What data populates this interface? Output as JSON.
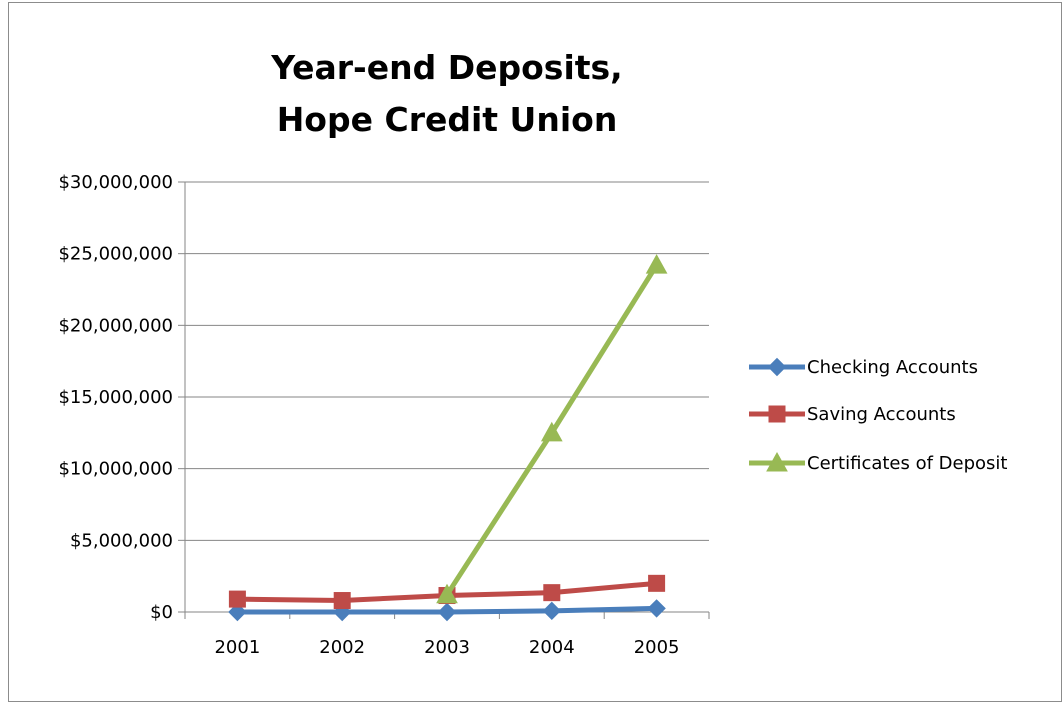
{
  "chart_data": {
    "type": "line",
    "title_lines": [
      "Year-end Deposits,",
      "Hope Credit Union"
    ],
    "categories": [
      "2001",
      "2002",
      "2003",
      "2004",
      "2005"
    ],
    "y_ticks": [
      "$0",
      "$5,000,000",
      "$10,000,000",
      "$15,000,000",
      "$20,000,000",
      "$25,000,000",
      "$30,000,000"
    ],
    "ylim": [
      0,
      30000000
    ],
    "grid": true,
    "legend_position": "right",
    "series": [
      {
        "name": "Checking Accounts",
        "color": "#4a7ebb",
        "marker": "diamond",
        "values": [
          0,
          0,
          0,
          80000,
          250000
        ]
      },
      {
        "name": "Saving Accounts",
        "color": "#be4b48",
        "marker": "square",
        "values": [
          900000,
          800000,
          1150000,
          1350000,
          2000000
        ]
      },
      {
        "name": "Certificates of Deposit",
        "color": "#98b954",
        "marker": "triangle",
        "values": [
          null,
          null,
          1200000,
          12500000,
          24200000
        ]
      }
    ]
  }
}
